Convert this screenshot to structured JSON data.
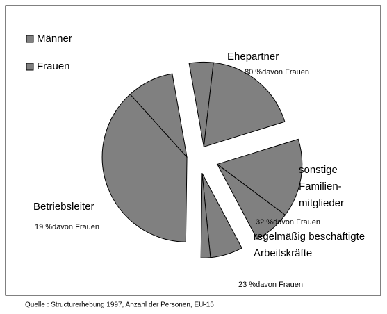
{
  "chart_data": {
    "type": "pie",
    "categories": [
      [
        "Ehepartner"
      ],
      [
        "sonstige",
        "Familien-",
        "mitglieder"
      ],
      [
        "regelmäßig beschäftigte",
        "Arbeitskräfte"
      ],
      [
        "Betriebsleiter"
      ]
    ],
    "notes": [
      "80 %davon Frauen",
      "32 %davon Frauen",
      "23 %davon Frauen",
      "19 %davon Frauen"
    ],
    "series": [
      {
        "name": "Männer",
        "color": "#808080",
        "values": [
          4.6,
          15.0,
          6.2,
          38.1
        ]
      },
      {
        "name": "Frauen",
        "color": "#808080",
        "values": [
          18.4,
          7.0,
          1.8,
          8.9
        ]
      }
    ],
    "source": "Quelle : Structurerhebung 1997, Anzahl der Personen, EU-15"
  }
}
